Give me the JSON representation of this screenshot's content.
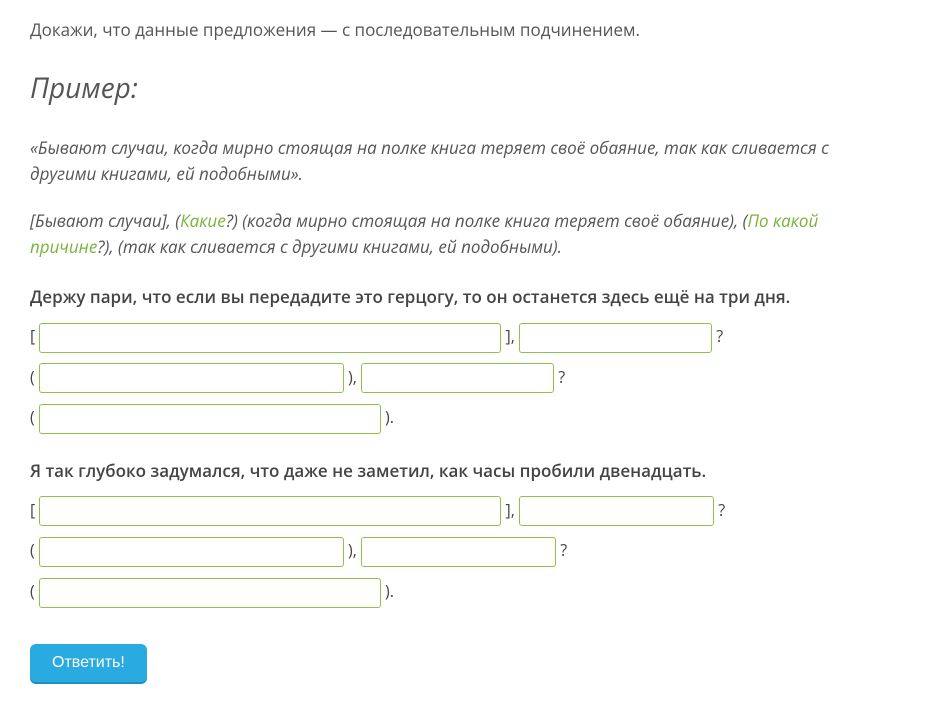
{
  "instruction": "Докажи, что данные предложения — с последовательным подчинением.",
  "example": {
    "heading": "Пример:",
    "quote": "«Бывают случаи, когда мирно стоящая на полке книга теряет своё обаяние, так как сливается с другими книгами, ей подобными».",
    "parse_pre1": "[Бывают случаи], (",
    "hl1": "Какие",
    "parse_mid1": "?) (когда мирно стоящая на полке книга теряет своё обаяние), (",
    "hl2": "По какой причине",
    "parse_post": "?), (так как сливается с другими книгами, ей подобными)."
  },
  "tasks": [
    {
      "sentence": "Держу пари, что если вы передадите это герцогу, то он останется здесь ещё на три дня.",
      "lines": [
        {
          "prefix": "[ ",
          "inputs": [
            {
              "w": "w-lg"
            }
          ],
          "mids": [
            " ], "
          ],
          "inputs2": [
            {
              "w": "w-sm"
            }
          ],
          "suffix": " ?"
        },
        {
          "prefix": "( ",
          "inputs": [
            {
              "w": "w-md"
            }
          ],
          "mids": [
            " ), "
          ],
          "inputs2": [
            {
              "w": "w-sm"
            }
          ],
          "suffix": " ?"
        },
        {
          "prefix": "( ",
          "inputs": [
            {
              "w": "w-xl"
            }
          ],
          "mids": [],
          "inputs2": [],
          "suffix": " )."
        }
      ]
    },
    {
      "sentence": "Я так глубоко задумался, что даже не заметил, как часы пробили двенадцать.",
      "lines": [
        {
          "prefix": "[ ",
          "inputs": [
            {
              "w": "w-lg"
            }
          ],
          "mids": [
            " ], "
          ],
          "inputs2": [
            {
              "w": "w-sm2"
            }
          ],
          "suffix": " ?"
        },
        {
          "prefix": "( ",
          "inputs": [
            {
              "w": "w-md"
            }
          ],
          "mids": [
            " ), "
          ],
          "inputs2": [
            {
              "w": "w-sm2"
            }
          ],
          "suffix": " ?"
        },
        {
          "prefix": "( ",
          "inputs": [
            {
              "w": "w-xl"
            }
          ],
          "mids": [],
          "inputs2": [],
          "suffix": " )."
        }
      ]
    }
  ],
  "submit_label": "Ответить!"
}
